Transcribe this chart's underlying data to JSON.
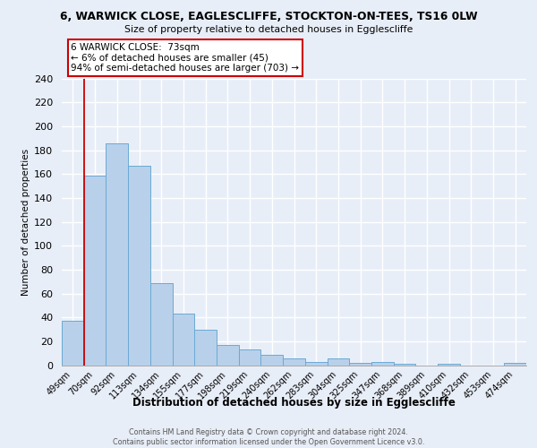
{
  "title_line1": "6, WARWICK CLOSE, EAGLESCLIFFE, STOCKTON-ON-TEES, TS16 0LW",
  "title_line2": "Size of property relative to detached houses in Egglescliffe",
  "xlabel": "Distribution of detached houses by size in Egglescliffe",
  "ylabel": "Number of detached properties",
  "categories": [
    "49sqm",
    "70sqm",
    "92sqm",
    "113sqm",
    "134sqm",
    "155sqm",
    "177sqm",
    "198sqm",
    "219sqm",
    "240sqm",
    "262sqm",
    "283sqm",
    "304sqm",
    "325sqm",
    "347sqm",
    "368sqm",
    "389sqm",
    "410sqm",
    "432sqm",
    "453sqm",
    "474sqm"
  ],
  "values": [
    37,
    159,
    186,
    167,
    69,
    43,
    30,
    17,
    13,
    9,
    6,
    3,
    6,
    2,
    3,
    1,
    0,
    1,
    0,
    0,
    2
  ],
  "bar_color": "#b8d0ea",
  "bar_edge_color": "#6aaad4",
  "vline_x": 0.5,
  "vline_color": "#cc0000",
  "annotation_title": "6 WARWICK CLOSE:  73sqm",
  "annotation_line2": "← 6% of detached houses are smaller (45)",
  "annotation_line3": "94% of semi-detached houses are larger (703) →",
  "annotation_box_facecolor": "#ffffff",
  "annotation_box_edgecolor": "#cc0000",
  "ylim_max": 240,
  "yticks": [
    0,
    20,
    40,
    60,
    80,
    100,
    120,
    140,
    160,
    180,
    200,
    220,
    240
  ],
  "footer_line1": "Contains HM Land Registry data © Crown copyright and database right 2024.",
  "footer_line2": "Contains public sector information licensed under the Open Government Licence v3.0.",
  "bg_color": "#e8eef8",
  "grid_color": "#ffffff"
}
